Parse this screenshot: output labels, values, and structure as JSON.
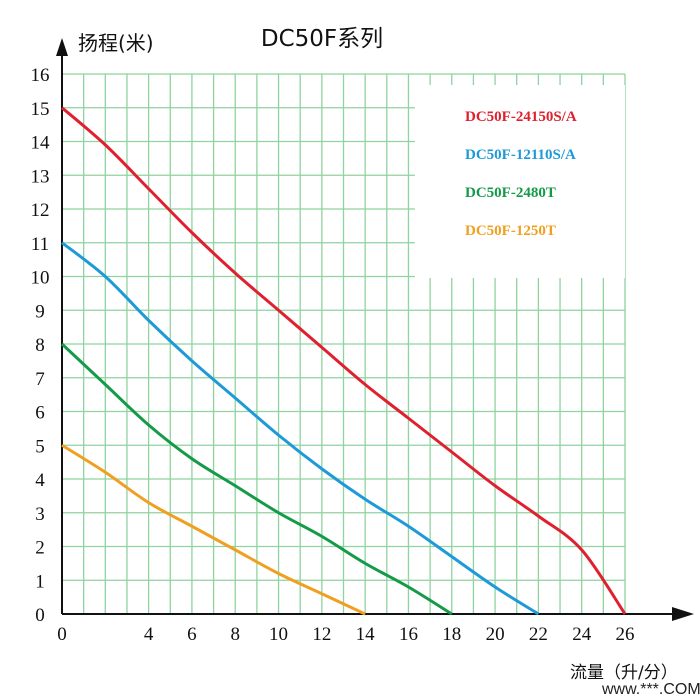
{
  "chart_data": {
    "type": "line",
    "title": "DC50F系列",
    "ylabel": "扬程(米)",
    "xlabel": "流量（升/分）",
    "xlim": [
      0,
      26
    ],
    "ylim": [
      0,
      16
    ],
    "x_ticks": [
      0,
      4,
      6,
      8,
      10,
      12,
      14,
      16,
      18,
      20,
      22,
      24,
      26
    ],
    "y_ticks": [
      0,
      1,
      2,
      3,
      4,
      5,
      6,
      7,
      8,
      9,
      10,
      11,
      12,
      13,
      14,
      15,
      16
    ],
    "grid": true,
    "grid_color": "#8fd3a0",
    "legend_position": "top-right",
    "series": [
      {
        "name": "DC50F-24150S/A",
        "color": "#e0202e",
        "x": [
          0,
          2,
          4,
          6,
          8,
          10,
          12,
          14,
          16,
          18,
          20,
          22,
          24,
          26
        ],
        "y": [
          15,
          13.9,
          12.6,
          11.3,
          10.1,
          9.0,
          7.9,
          6.8,
          5.8,
          4.8,
          3.8,
          2.9,
          1.9,
          0
        ]
      },
      {
        "name": "DC50F-12110S/A",
        "color": "#1e9ad8",
        "x": [
          0,
          2,
          4,
          6,
          8,
          10,
          12,
          14,
          16,
          18,
          20,
          22
        ],
        "y": [
          11,
          10.0,
          8.7,
          7.5,
          6.4,
          5.3,
          4.3,
          3.4,
          2.6,
          1.7,
          0.8,
          0
        ]
      },
      {
        "name": "DC50F-2480T",
        "color": "#159a48",
        "x": [
          0,
          2,
          4,
          6,
          8,
          10,
          12,
          14,
          16,
          18
        ],
        "y": [
          8,
          6.8,
          5.6,
          4.6,
          3.8,
          3.0,
          2.3,
          1.5,
          0.8,
          0
        ]
      },
      {
        "name": "DC50F-1250T",
        "color": "#f0a020",
        "x": [
          0,
          2,
          4,
          6,
          8,
          10,
          12,
          14
        ],
        "y": [
          5,
          4.2,
          3.3,
          2.6,
          1.9,
          1.2,
          0.6,
          0
        ]
      }
    ]
  },
  "watermark": "www.***.COM"
}
